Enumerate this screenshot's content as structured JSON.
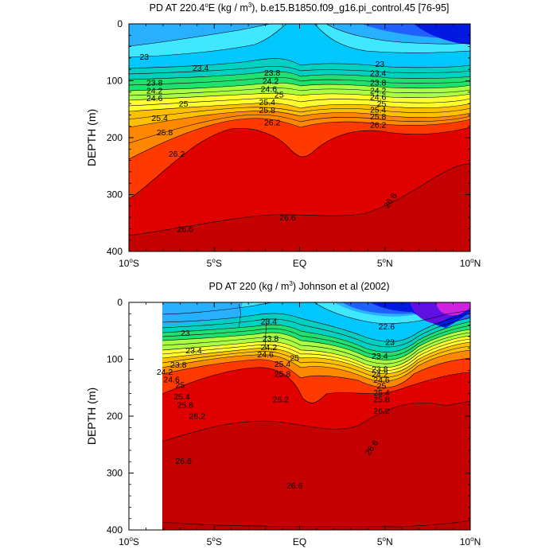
{
  "chart_data": [
    {
      "type": "heatmap",
      "title": "PD AT 220.4°E (kg / m³), b.e15.B1850.f09_g16.pi_control.45 [76-95]",
      "title_parts": {
        "a": "PD AT 220.4",
        "deg": "o",
        "b": "E (kg / m",
        "sup": "3",
        "c": "), b.e15.B1850.f09_g16.pi_control.45 [76-95]"
      },
      "ylabel": "DEPTH (m)",
      "xlim": [
        -10,
        10
      ],
      "ylim": [
        400,
        0
      ],
      "x_ticks": [
        {
          "value": -10,
          "text": "10",
          "deg": "o",
          "hemi": "S"
        },
        {
          "value": -5,
          "text": "5",
          "deg": "o",
          "hemi": "S"
        },
        {
          "value": 0,
          "text": "EQ",
          "deg": "",
          "hemi": ""
        },
        {
          "value": 5,
          "text": "5",
          "deg": "o",
          "hemi": "N"
        },
        {
          "value": 10,
          "text": "10",
          "deg": "o",
          "hemi": "N"
        }
      ],
      "y_ticks": [
        "0",
        "100",
        "200",
        "300",
        "400"
      ],
      "contour_labels": [
        {
          "text": "23",
          "lat": -9.1,
          "depth": 57
        },
        {
          "text": "23.4",
          "lat": -5.8,
          "depth": 77
        },
        {
          "text": "23.8",
          "lat": -8.5,
          "depth": 103
        },
        {
          "text": "24.2",
          "lat": -8.5,
          "depth": 117
        },
        {
          "text": "24.6",
          "lat": -8.5,
          "depth": 130
        },
        {
          "text": "25",
          "lat": -6.8,
          "depth": 140
        },
        {
          "text": "25.4",
          "lat": -8.2,
          "depth": 165
        },
        {
          "text": "25.8",
          "lat": -7.9,
          "depth": 190
        },
        {
          "text": "26.2",
          "lat": -7.2,
          "depth": 228
        },
        {
          "text": "26.6",
          "lat": -6.7,
          "depth": 360
        },
        {
          "text": "23.8",
          "lat": -1.6,
          "depth": 85
        },
        {
          "text": "24.2",
          "lat": -1.7,
          "depth": 100
        },
        {
          "text": "24.6",
          "lat": -1.8,
          "depth": 114
        },
        {
          "text": "25",
          "lat": -1.2,
          "depth": 124
        },
        {
          "text": "25.4",
          "lat": -1.9,
          "depth": 137
        },
        {
          "text": "25.8",
          "lat": -1.9,
          "depth": 151
        },
        {
          "text": "26.2",
          "lat": -1.6,
          "depth": 173
        },
        {
          "text": "26.6",
          "lat": -0.7,
          "depth": 340
        },
        {
          "text": "23",
          "lat": 4.7,
          "depth": 70
        },
        {
          "text": "23.4",
          "lat": 4.6,
          "depth": 86
        },
        {
          "text": "23.8",
          "lat": 4.6,
          "depth": 103
        },
        {
          "text": "24.2",
          "lat": 4.6,
          "depth": 117
        },
        {
          "text": "24.6",
          "lat": 4.6,
          "depth": 128
        },
        {
          "text": "25",
          "lat": 4.8,
          "depth": 140
        },
        {
          "text": "25.4",
          "lat": 4.6,
          "depth": 150
        },
        {
          "text": "25.8",
          "lat": 4.6,
          "depth": 162
        },
        {
          "text": "26.2",
          "lat": 4.6,
          "depth": 177
        },
        {
          "text": "26.6",
          "lat": 5.3,
          "depth": 310
        }
      ]
    },
    {
      "type": "heatmap",
      "title": "PD AT 220 (kg / m³) Johnson et al (2002)",
      "title_parts": {
        "a": "PD AT 220 (kg / m",
        "sup": "3",
        "b": ") Johnson et al (2002)"
      },
      "ylabel": "DEPTH (m)",
      "xlim": [
        -10,
        10
      ],
      "ylim": [
        400,
        0
      ],
      "data_xlim": [
        -8,
        10
      ],
      "x_ticks": [
        {
          "value": -10,
          "text": "10",
          "deg": "o",
          "hemi": "S"
        },
        {
          "value": -5,
          "text": "5",
          "deg": "o",
          "hemi": "S"
        },
        {
          "value": 0,
          "text": "EQ",
          "deg": "",
          "hemi": ""
        },
        {
          "value": 5,
          "text": "5",
          "deg": "o",
          "hemi": "N"
        },
        {
          "value": 10,
          "text": "10",
          "deg": "o",
          "hemi": "N"
        }
      ],
      "y_ticks": [
        "0",
        "100",
        "200",
        "300",
        "400"
      ],
      "contour_labels": [
        {
          "text": "23",
          "lat": -6.7,
          "depth": 53
        },
        {
          "text": "23.4",
          "lat": -6.2,
          "depth": 84
        },
        {
          "text": "23.8",
          "lat": -7.1,
          "depth": 109
        },
        {
          "text": "24.2",
          "lat": -7.9,
          "depth": 122
        },
        {
          "text": "24.6",
          "lat": -7.5,
          "depth": 135
        },
        {
          "text": "25",
          "lat": -7.0,
          "depth": 145
        },
        {
          "text": "25.4",
          "lat": -6.9,
          "depth": 165
        },
        {
          "text": "25.8",
          "lat": -6.7,
          "depth": 180
        },
        {
          "text": "26.2",
          "lat": -6.0,
          "depth": 199
        },
        {
          "text": "26.6",
          "lat": -6.8,
          "depth": 278
        },
        {
          "text": "23.4",
          "lat": -1.8,
          "depth": 33
        },
        {
          "text": "23.8",
          "lat": -1.7,
          "depth": 63
        },
        {
          "text": "24.2",
          "lat": -1.8,
          "depth": 78
        },
        {
          "text": "24.6",
          "lat": -2.0,
          "depth": 91
        },
        {
          "text": "25",
          "lat": -0.3,
          "depth": 97
        },
        {
          "text": "25.4",
          "lat": -1.0,
          "depth": 108
        },
        {
          "text": "25.8",
          "lat": -1.0,
          "depth": 125
        },
        {
          "text": "26.2",
          "lat": -1.1,
          "depth": 170
        },
        {
          "text": "26.6",
          "lat": -0.3,
          "depth": 322
        },
        {
          "text": "22.6",
          "lat": 5.1,
          "depth": 42
        },
        {
          "text": "23",
          "lat": 5.3,
          "depth": 69
        },
        {
          "text": "23.4",
          "lat": 4.7,
          "depth": 94
        },
        {
          "text": "23.8",
          "lat": 4.7,
          "depth": 117
        },
        {
          "text": "24.2",
          "lat": 4.7,
          "depth": 126
        },
        {
          "text": "24.6",
          "lat": 4.8,
          "depth": 136
        },
        {
          "text": "25",
          "lat": 4.8,
          "depth": 146
        },
        {
          "text": "25.4",
          "lat": 4.8,
          "depth": 158
        },
        {
          "text": "25.8",
          "lat": 4.8,
          "depth": 170
        },
        {
          "text": "26.2",
          "lat": 4.8,
          "depth": 190
        },
        {
          "text": "26.6",
          "lat": 4.2,
          "depth": 255
        }
      ]
    }
  ],
  "colors": {
    "deep": "#c40000",
    "deeper": "#b80000",
    "red": "#e00000",
    "orange_red": "#ff3a00",
    "orange": "#ff8800",
    "yellow_orange": "#ffc000",
    "yellow": "#ffff30",
    "green_yellow": "#aaff40",
    "green": "#20e070",
    "teal": "#00d0c0",
    "cyan": "#00c8ff",
    "light_cyan": "#40e8ff",
    "sky": "#28b0ff",
    "blue": "#2060ff",
    "dark_blue": "#0018e0",
    "indigo": "#6010e0",
    "magenta": "#d020e0"
  }
}
